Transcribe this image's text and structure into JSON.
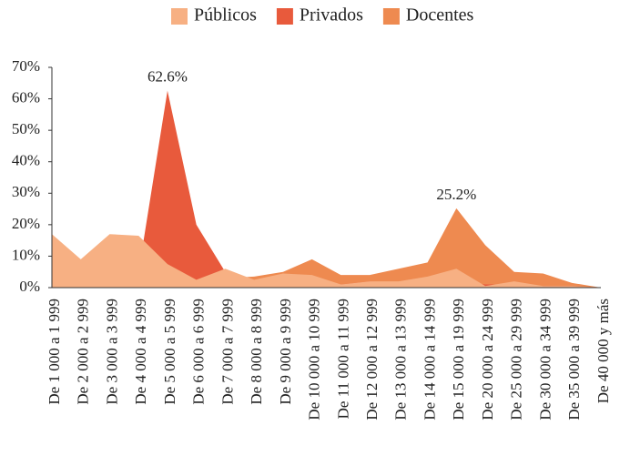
{
  "chart_data": {
    "type": "area",
    "categories": [
      "De 1 000 a 1 999",
      "De 2 000 a 2 999",
      "De 3 000 a 3 999",
      "De 4 000 a 4 999",
      "De 5 000 a 5 999",
      "De 6 000 a 6 999",
      "De 7 000 a 7 999",
      "De 8 000 a 8 999",
      "De 9 000 a 9 999",
      "De 10 000 a 10 999",
      "De 11 000 a 11 999",
      "De 12 000 a 12 999",
      "De 13 000 a 13 999",
      "De 14 000 a 14 999",
      "De 15 000 a 19 999",
      "De 20 000 a 24 999",
      "De 25 000 a 29 999",
      "De 30 000 a 34 999",
      "De 35 000 a 39 999",
      "De 40 000 y más"
    ],
    "series": [
      {
        "name": "Públicos",
        "color": "#f7b083",
        "values": [
          17,
          9,
          17,
          16.5,
          7.5,
          2.5,
          6,
          2.5,
          4.5,
          4,
          1,
          2,
          2,
          3.5,
          6,
          0.5,
          2,
          0.5,
          0.5,
          0
        ]
      },
      {
        "name": "Privados",
        "color": "#e85a3c",
        "values": [
          0,
          0,
          0,
          5,
          62.6,
          20,
          5,
          2,
          4,
          2,
          1,
          2,
          1.5,
          2,
          2,
          1,
          1,
          0.5,
          0.5,
          0
        ],
        "value_labels": [
          null,
          null,
          null,
          null,
          "62.6%",
          null,
          null,
          null,
          null,
          null,
          null,
          null,
          null,
          null,
          null,
          null,
          null,
          null,
          null,
          null
        ]
      },
      {
        "name": "Docentes",
        "color": "#ee8a50",
        "values": [
          0,
          0,
          0,
          3,
          7,
          3,
          3,
          3.5,
          5,
          9,
          4,
          4,
          6,
          8,
          25.2,
          13.5,
          5,
          4.5,
          1.5,
          0
        ],
        "value_labels": [
          null,
          null,
          null,
          null,
          null,
          null,
          null,
          null,
          null,
          null,
          null,
          null,
          null,
          null,
          "25.2%",
          null,
          null,
          null,
          null,
          null
        ]
      }
    ],
    "ylim": [
      0,
      70
    ],
    "yticks": [
      {
        "value": 0,
        "label": "0%"
      },
      {
        "value": 10,
        "label": "10%"
      },
      {
        "value": 20,
        "label": "20%"
      },
      {
        "value": 30,
        "label": "30%"
      },
      {
        "value": 40,
        "label": "40%"
      },
      {
        "value": 50,
        "label": "50%"
      },
      {
        "value": 60,
        "label": "60%"
      },
      {
        "value": 70,
        "label": "70%"
      }
    ],
    "grid": false,
    "legend": "top"
  }
}
